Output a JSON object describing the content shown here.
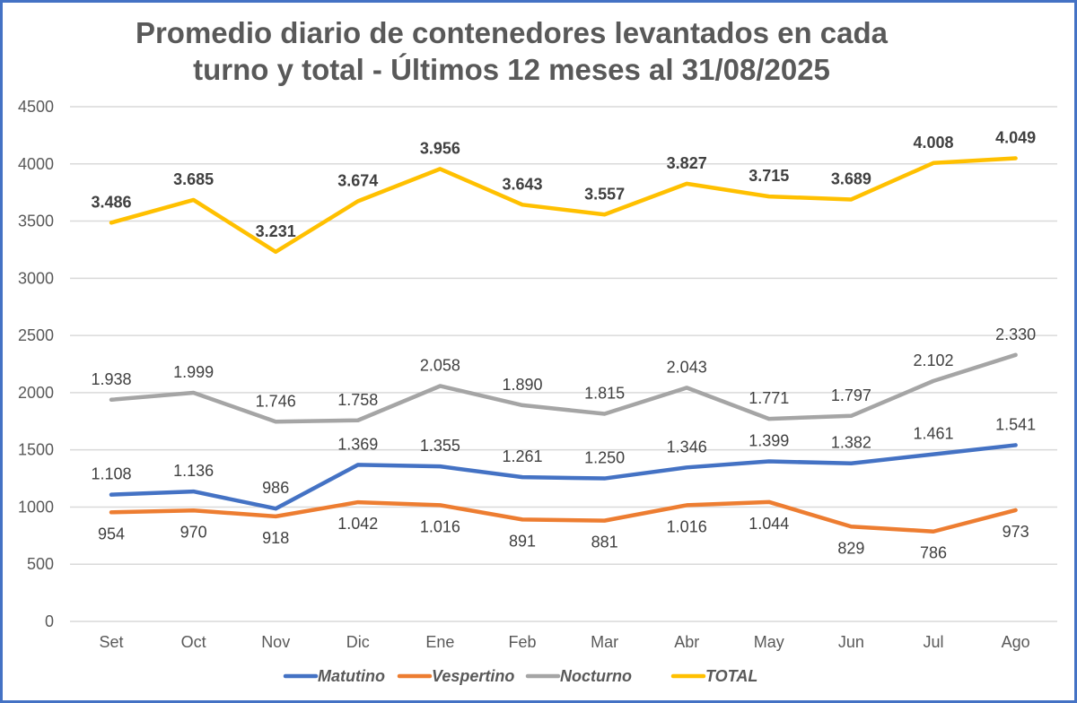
{
  "chart_data": {
    "type": "line",
    "title_line1": "Promedio diario de contenedores levantados en cada",
    "title_line2": "turno y total - Últimos 12 meses al 31/08/2025",
    "xlabel": "",
    "ylabel": "",
    "ylim": [
      0,
      4500
    ],
    "yticks": [
      0,
      500,
      1000,
      1500,
      2000,
      2500,
      3000,
      3500,
      4000,
      4500
    ],
    "grid": true,
    "legend_position": "bottom",
    "categories": [
      "Set",
      "Oct",
      "Nov",
      "Dic",
      "Ene",
      "Feb",
      "Mar",
      "Abr",
      "May",
      "Jun",
      "Jul",
      "Ago"
    ],
    "series": [
      {
        "name": "Matutino",
        "color": "#4472c4",
        "values": [
          1108,
          1136,
          986,
          1369,
          1355,
          1261,
          1250,
          1346,
          1399,
          1382,
          1461,
          1541
        ],
        "labels": [
          "1.108",
          "1.136",
          "986",
          "1.369",
          "1.355",
          "1.261",
          "1.250",
          "1.346",
          "1.399",
          "1.382",
          "1.461",
          "1.541"
        ],
        "label_position": "above",
        "bold_labels": false
      },
      {
        "name": "Vespertino",
        "color": "#ed7d31",
        "values": [
          954,
          970,
          918,
          1042,
          1016,
          891,
          881,
          1016,
          1044,
          829,
          786,
          973
        ],
        "labels": [
          "954",
          "970",
          "918",
          "1.042",
          "1.016",
          "891",
          "881",
          "1.016",
          "1.044",
          "829",
          "786",
          "973"
        ],
        "label_position": "below",
        "bold_labels": false
      },
      {
        "name": "Nocturno",
        "color": "#a5a5a5",
        "values": [
          1938,
          1999,
          1746,
          1758,
          2058,
          1890,
          1815,
          2043,
          1771,
          1797,
          2102,
          2330
        ],
        "labels": [
          "1.938",
          "1.999",
          "1.746",
          "1.758",
          "2.058",
          "1.890",
          "1.815",
          "2.043",
          "1.771",
          "1.797",
          "2.102",
          "2.330"
        ],
        "label_position": "above",
        "bold_labels": false
      },
      {
        "name": "TOTAL",
        "color": "#ffc000",
        "values": [
          3486,
          3685,
          3231,
          3674,
          3956,
          3643,
          3557,
          3827,
          3715,
          3689,
          4008,
          4049
        ],
        "labels": [
          "3.486",
          "3.685",
          "3.231",
          "3.674",
          "3.956",
          "3.643",
          "3.557",
          "3.827",
          "3.715",
          "3.689",
          "4.008",
          "4.049"
        ],
        "label_position": "above",
        "bold_labels": true
      }
    ]
  }
}
